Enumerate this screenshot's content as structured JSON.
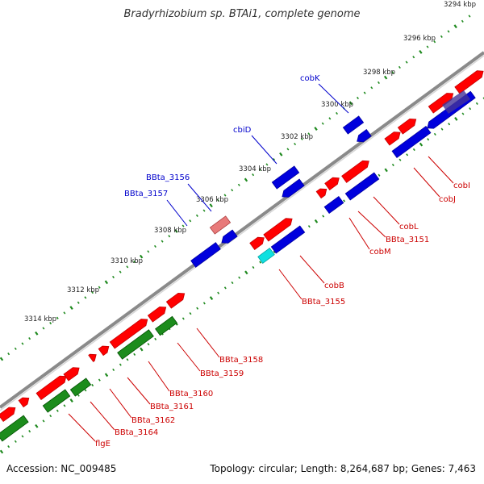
{
  "title": "Bradyrhizobium sp. BTAi1, complete genome",
  "footer": {
    "accession": "Accession: NC_009485",
    "summary": "Topology: circular; Length: 8,264,687 bp; Genes: 7,463"
  },
  "colors": {
    "backbone": "#8c8c8c",
    "tick": "#1f8a1f",
    "forward_gene": "#ff0000",
    "reverse_gene": "#0000dd",
    "rna_gene": "#1c8c1c",
    "label_forward": "#cc0000",
    "label_reverse": "#0000cc"
  },
  "ruler": [
    {
      "label": "3294 kbp",
      "kbp": 3294
    },
    {
      "label": "3296 kbp",
      "kbp": 3296
    },
    {
      "label": "3298 kbp",
      "kbp": 3298
    },
    {
      "label": "3300 kbp",
      "kbp": 3300
    },
    {
      "label": "3302 kbp",
      "kbp": 3302
    },
    {
      "label": "3304 kbp",
      "kbp": 3304
    },
    {
      "label": "3306 kbp",
      "kbp": 3306
    },
    {
      "label": "3308 kbp",
      "kbp": 3308
    },
    {
      "label": "3310 kbp",
      "kbp": 3310
    },
    {
      "label": "3312 kbp",
      "kbp": 3312
    },
    {
      "label": "3314 kbp",
      "kbp": 3314
    }
  ],
  "gene_labels_reverse": [
    {
      "name": "cobK"
    },
    {
      "name": "cbiD"
    },
    {
      "name": "BBta_3156"
    },
    {
      "name": "BBta_3157"
    }
  ],
  "gene_labels_forward": [
    {
      "name": "cobI"
    },
    {
      "name": "cobJ"
    },
    {
      "name": "cobL"
    },
    {
      "name": "BBta_3151"
    },
    {
      "name": "cobM"
    },
    {
      "name": "cobB"
    },
    {
      "name": "BBta_3155"
    },
    {
      "name": "BBta_3158"
    },
    {
      "name": "BBta_3159"
    },
    {
      "name": "BBta_3160"
    },
    {
      "name": "BBta_3161"
    },
    {
      "name": "BBta_3162"
    },
    {
      "name": "BBta_3164"
    },
    {
      "name": "flgE"
    }
  ]
}
